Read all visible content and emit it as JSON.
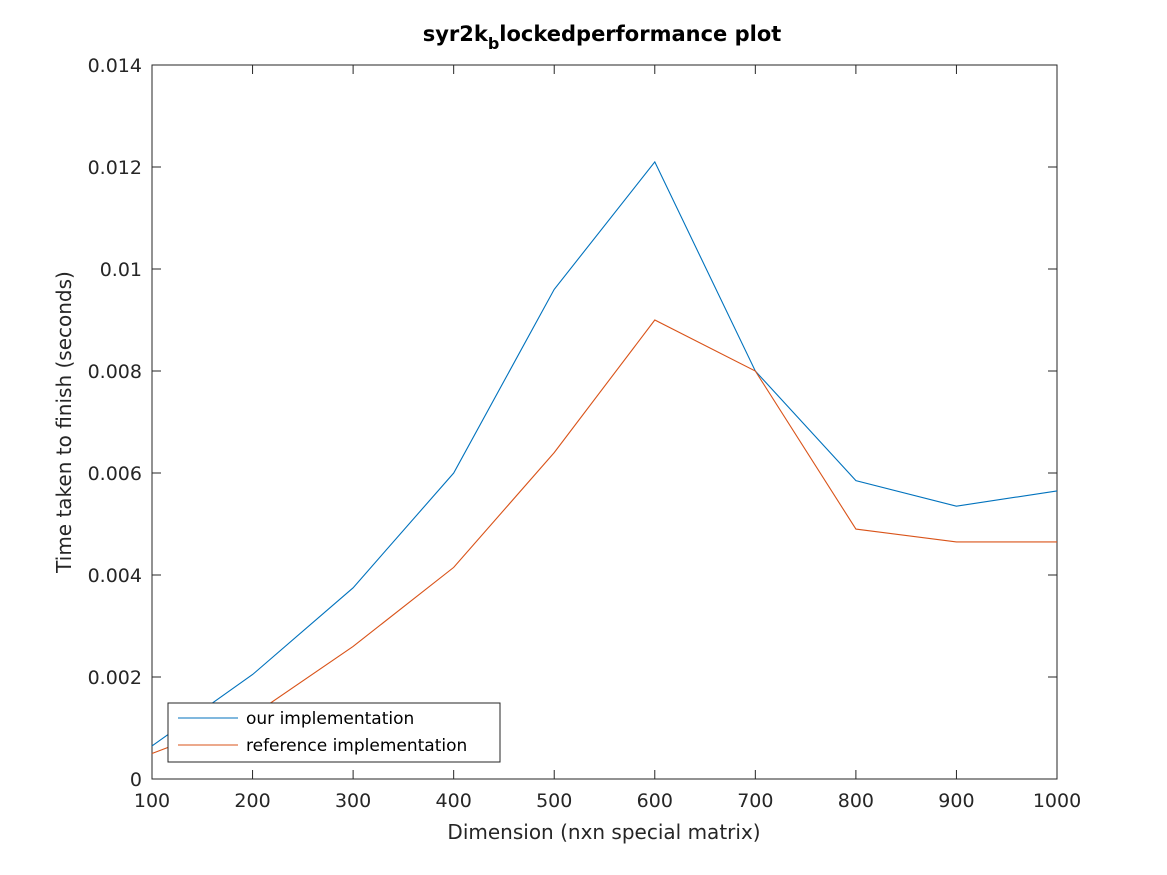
{
  "chart_data": {
    "type": "line",
    "title_main": "syr2k",
    "title_sub": "b",
    "title_rest": "lockedperformance plot",
    "xlabel": "Dimension (nxn special matrix)",
    "ylabel": "Time taken to finish (seconds)",
    "xlim": [
      100,
      1000
    ],
    "ylim": [
      0,
      0.014
    ],
    "xticks": [
      "100",
      "200",
      "300",
      "400",
      "500",
      "600",
      "700",
      "800",
      "900",
      "1000"
    ],
    "yticks": [
      "0",
      "0.002",
      "0.004",
      "0.006",
      "0.008",
      "0.01",
      "0.012",
      "0.014"
    ],
    "x": [
      100,
      200,
      300,
      400,
      500,
      600,
      700,
      800,
      900,
      1000
    ],
    "series": [
      {
        "name": "our implementation",
        "color": "#0072BD",
        "values": [
          0.00065,
          0.00205,
          0.00375,
          0.006,
          0.0096,
          0.0121,
          0.008,
          0.00585,
          0.00535,
          0.00565
        ]
      },
      {
        "name": "reference implementation",
        "color": "#D95319",
        "values": [
          0.0005,
          0.00125,
          0.0026,
          0.00415,
          0.0064,
          0.009,
          0.008,
          0.0049,
          0.00465,
          0.00465
        ]
      }
    ],
    "grid": false,
    "legend_position": "bottom-left"
  }
}
